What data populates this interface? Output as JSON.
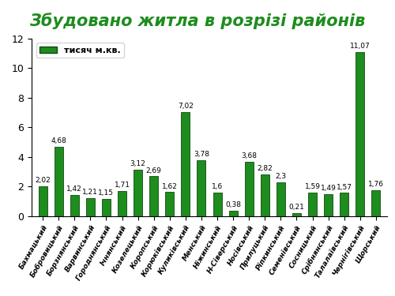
{
  "chart_data": {
    "type": "bar",
    "title": "Збудовано житла в розрізі районів",
    "categories": [
      "Бахмацький",
      "Бобровицький",
      "Борзнянський",
      "Варвинський",
      "Городнянський",
      "Ічнянський",
      "Козелецький",
      "Коропський",
      "Корюківський",
      "Куликівський",
      "Менський",
      "Ніжинський",
      "Н-Сіверський",
      "Носівський",
      "Прилуцький",
      "Ріпкинський",
      "Семенівський",
      "Сосницький",
      "Срібнянський",
      "Талалаївський",
      "Чернігівський",
      "Щорський"
    ],
    "series": [
      {
        "name": "тисяч м.кв.",
        "color": "#1e8c1e",
        "values": [
          2.02,
          4.68,
          1.42,
          1.21,
          1.15,
          1.71,
          3.12,
          2.69,
          1.62,
          7.02,
          3.78,
          1.6,
          0.38,
          3.68,
          2.82,
          2.3,
          0.21,
          1.59,
          1.49,
          1.57,
          11.07,
          1.76
        ],
        "value_labels": [
          "2,02",
          "4,68",
          "1,42",
          "1,21",
          "1,15",
          "1,71",
          "3,12",
          "2,69",
          "1,62",
          "7,02",
          "3,78",
          "1,6",
          "0,38",
          "3,68",
          "2,82",
          "2,3",
          "0,21",
          "1,59",
          "1,49",
          "1,57",
          "11,07",
          "1,76"
        ]
      }
    ],
    "ylim": [
      0,
      12
    ],
    "yticks": [
      0,
      2,
      4,
      6,
      8,
      10,
      12
    ],
    "grid": false,
    "legend": "upper left",
    "data_labels": true
  }
}
